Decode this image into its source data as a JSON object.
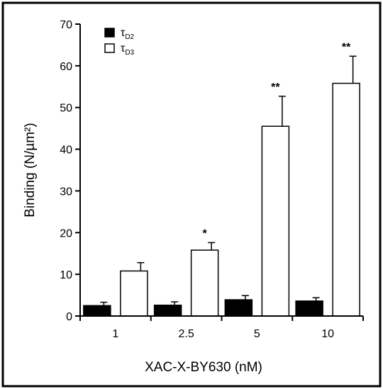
{
  "chart_data": {
    "type": "bar",
    "xlabel": "XAC-X-BY630 (nM)",
    "ylabel": "Binding (N/µm²)",
    "ylim": [
      0,
      70
    ],
    "yticks": [
      0,
      10,
      20,
      30,
      40,
      50,
      60,
      70
    ],
    "categories": [
      "1",
      "2.5",
      "5",
      "10"
    ],
    "series": [
      {
        "name": "τD2",
        "symbol": "τ",
        "subscript": "D2",
        "color": "#000000",
        "values": [
          2.5,
          2.6,
          3.9,
          3.6
        ],
        "errors": [
          0.8,
          0.8,
          1.0,
          0.8
        ]
      },
      {
        "name": "τD3",
        "symbol": "τ",
        "subscript": "D3",
        "color": "#ffffff",
        "values": [
          10.8,
          15.8,
          45.5,
          55.8
        ],
        "errors": [
          2.0,
          1.8,
          7.2,
          6.5
        ]
      }
    ],
    "annotations": [
      "",
      "*",
      "**",
      "**"
    ],
    "legend_position": "top-left"
  }
}
